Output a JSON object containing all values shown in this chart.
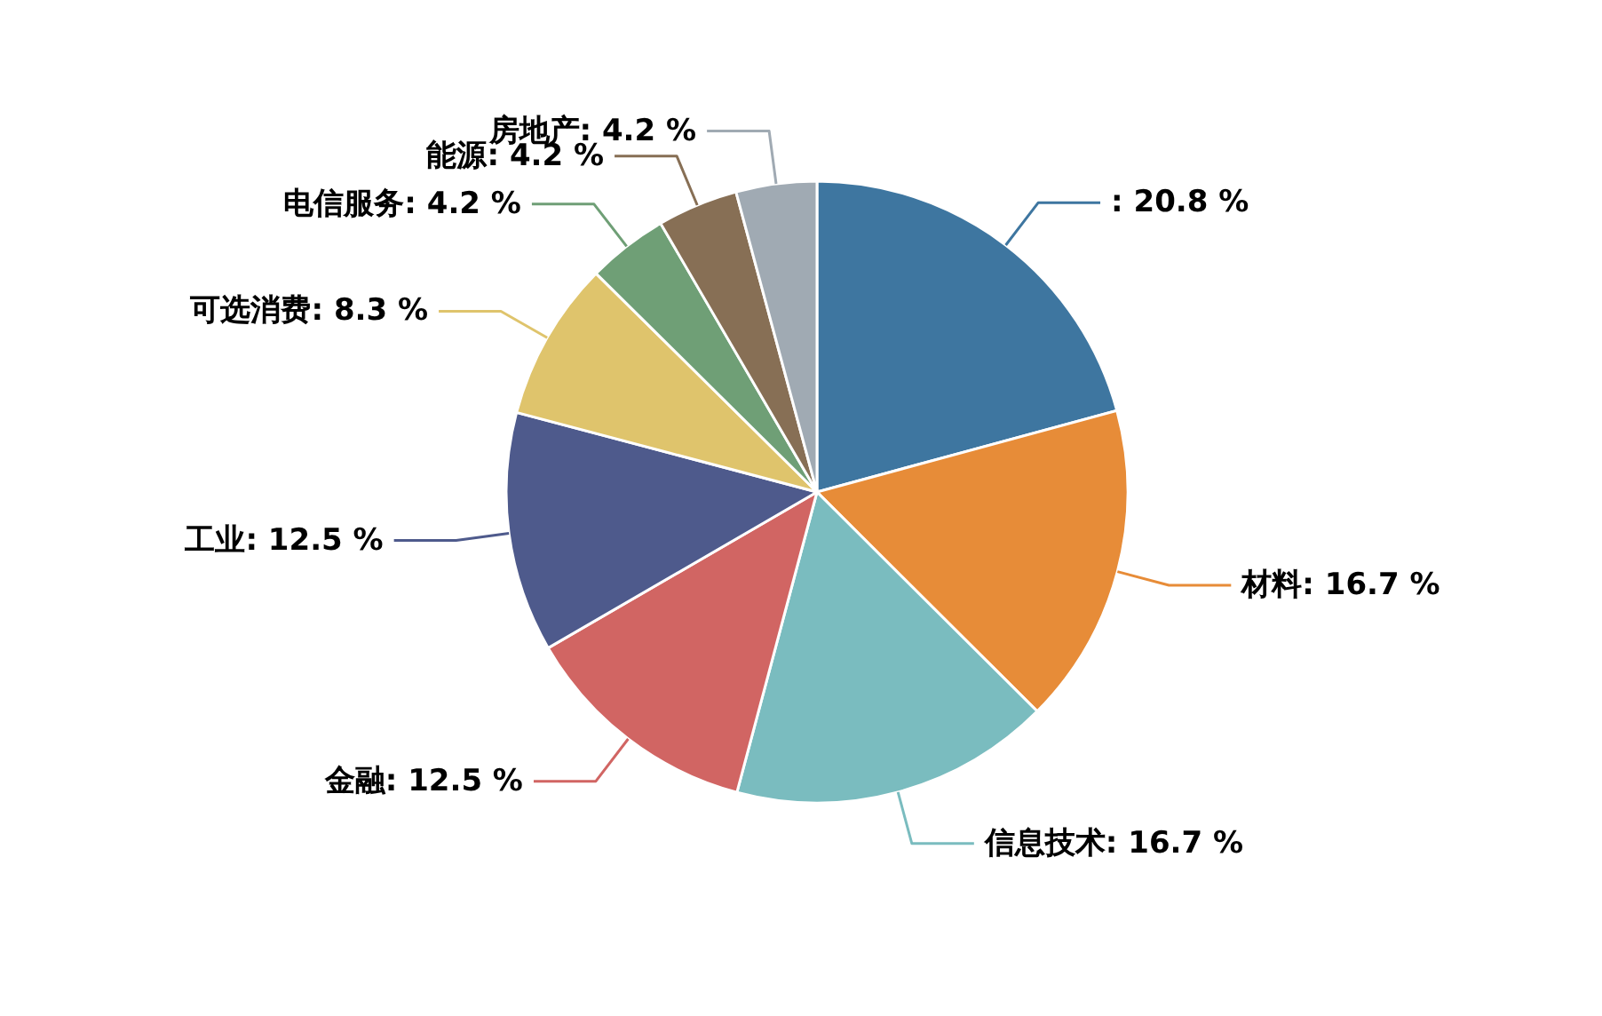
{
  "chart_data": {
    "type": "pie",
    "categories": [
      null,
      "材料",
      "信息技术",
      "金融",
      "工业",
      "可选消费",
      "电信服务",
      "能源",
      "房地产"
    ],
    "values": [
      20.8,
      16.7,
      16.7,
      12.5,
      12.5,
      8.3,
      4.2,
      4.2,
      4.2
    ],
    "value_labels": [
      ": 20.8 %",
      ": 16.7 %",
      ": 16.7 %",
      ": 12.5 %",
      ": 12.5 %",
      ": 8.3 %",
      ": 4.2 %",
      ": 4.2 %",
      ": 4.2 %"
    ],
    "colors": [
      "#3e76a0",
      "#e78c38",
      "#7abcbf",
      "#d16563",
      "#4e5a8c",
      "#dfc46c",
      "#6f9f76",
      "#876f55",
      "#a0aab3"
    ]
  }
}
